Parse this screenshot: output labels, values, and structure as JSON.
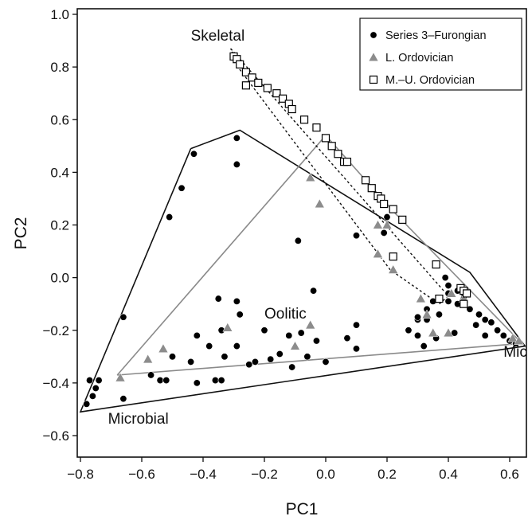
{
  "chart_data": {
    "type": "scatter",
    "xlabel": "PC1",
    "ylabel": "PC2",
    "xlim": [
      -0.8,
      0.65
    ],
    "ylim": [
      -0.6,
      1.0
    ],
    "xticks": [
      -0.8,
      -0.6,
      -0.4,
      -0.2,
      0.0,
      0.2,
      0.4,
      0.6
    ],
    "yticks": [
      -0.6,
      -0.4,
      -0.2,
      0.0,
      0.2,
      0.4,
      0.6,
      0.8,
      1.0
    ],
    "xtick_labels": [
      "−0.8",
      "−0.6",
      "−0.4",
      "−0.2",
      "0.0",
      "0.2",
      "0.4",
      "0.6"
    ],
    "ytick_labels": [
      "−0.6",
      "−0.4",
      "−0.2",
      "0.0",
      "0.2",
      "0.4",
      "0.6",
      "0.8",
      "1.0"
    ],
    "grid": false,
    "legend_position": "top-right",
    "annotations": [
      {
        "text": "Skeletal",
        "x": -0.44,
        "y": 0.9
      },
      {
        "text": "Oolitic",
        "x": -0.2,
        "y": -0.155
      },
      {
        "text": "Micritic",
        "x": 0.58,
        "y": -0.3
      },
      {
        "text": "Microbial",
        "x": -0.71,
        "y": -0.555
      }
    ],
    "series": [
      {
        "name": "Series 3–Furongian",
        "marker": "circle",
        "color": "#000000",
        "points": [
          [
            -0.29,
            0.53
          ],
          [
            -0.43,
            0.47
          ],
          [
            -0.29,
            0.43
          ],
          [
            -0.47,
            0.34
          ],
          [
            -0.51,
            0.23
          ],
          [
            -0.66,
            -0.15
          ],
          [
            -0.09,
            0.14
          ],
          [
            0.1,
            0.16
          ],
          [
            -0.35,
            -0.08
          ],
          [
            -0.29,
            -0.09
          ],
          [
            -0.04,
            -0.05
          ],
          [
            -0.28,
            -0.14
          ],
          [
            -0.42,
            -0.22
          ],
          [
            -0.34,
            -0.2
          ],
          [
            -0.2,
            -0.2
          ],
          [
            -0.08,
            -0.21
          ],
          [
            0.1,
            -0.18
          ],
          [
            0.07,
            -0.23
          ],
          [
            -0.12,
            -0.22
          ],
          [
            -0.03,
            -0.24
          ],
          [
            -0.29,
            -0.26
          ],
          [
            -0.38,
            -0.26
          ],
          [
            0.27,
            -0.2
          ],
          [
            0.3,
            -0.22
          ],
          [
            -0.5,
            -0.3
          ],
          [
            -0.44,
            -0.32
          ],
          [
            -0.33,
            -0.3
          ],
          [
            -0.25,
            -0.33
          ],
          [
            -0.18,
            -0.31
          ],
          [
            -0.15,
            -0.29
          ],
          [
            -0.06,
            -0.3
          ],
          [
            0.1,
            -0.27
          ],
          [
            -0.23,
            -0.32
          ],
          [
            -0.11,
            -0.34
          ],
          [
            0.0,
            -0.32
          ],
          [
            0.32,
            -0.26
          ],
          [
            -0.54,
            -0.39
          ],
          [
            -0.52,
            -0.39
          ],
          [
            -0.42,
            -0.4
          ],
          [
            -0.36,
            -0.39
          ],
          [
            -0.34,
            -0.39
          ],
          [
            -0.57,
            -0.37
          ],
          [
            -0.74,
            -0.39
          ],
          [
            -0.77,
            -0.39
          ],
          [
            -0.75,
            -0.42
          ],
          [
            -0.76,
            -0.45
          ],
          [
            -0.78,
            -0.48
          ],
          [
            -0.66,
            -0.46
          ],
          [
            0.33,
            -0.12
          ],
          [
            0.37,
            -0.14
          ],
          [
            0.4,
            -0.09
          ],
          [
            0.43,
            -0.1
          ],
          [
            0.45,
            -0.08
          ],
          [
            0.47,
            -0.12
          ],
          [
            0.5,
            -0.14
          ],
          [
            0.49,
            -0.18
          ],
          [
            0.52,
            -0.16
          ],
          [
            0.54,
            -0.17
          ],
          [
            0.56,
            -0.2
          ],
          [
            0.58,
            -0.22
          ],
          [
            0.6,
            -0.24
          ],
          [
            0.62,
            -0.25
          ],
          [
            0.52,
            -0.22
          ],
          [
            0.42,
            -0.21
          ],
          [
            0.36,
            -0.23
          ],
          [
            0.33,
            -0.16
          ],
          [
            0.39,
            0.0
          ],
          [
            0.4,
            -0.03
          ],
          [
            0.4,
            -0.06
          ],
          [
            0.43,
            -0.05
          ],
          [
            0.45,
            -0.06
          ],
          [
            0.3,
            -0.16
          ],
          [
            0.2,
            0.23
          ],
          [
            0.19,
            0.28
          ],
          [
            0.19,
            0.17
          ],
          [
            0.3,
            -0.15
          ],
          [
            0.35,
            -0.09
          ]
        ]
      },
      {
        "name": "L. Ordovician",
        "marker": "triangle",
        "color": "#8c8c8c",
        "points": [
          [
            -0.05,
            0.38
          ],
          [
            -0.02,
            0.28
          ],
          [
            0.17,
            0.2
          ],
          [
            0.2,
            0.2
          ],
          [
            0.17,
            0.09
          ],
          [
            0.22,
            0.03
          ],
          [
            0.31,
            -0.08
          ],
          [
            0.33,
            -0.14
          ],
          [
            0.41,
            -0.06
          ],
          [
            0.45,
            -0.08
          ],
          [
            0.35,
            -0.21
          ],
          [
            0.4,
            -0.21
          ],
          [
            0.61,
            -0.23
          ],
          [
            0.63,
            -0.24
          ],
          [
            -0.32,
            -0.19
          ],
          [
            -0.05,
            -0.18
          ],
          [
            -0.1,
            -0.26
          ],
          [
            -0.58,
            -0.31
          ],
          [
            -0.53,
            -0.27
          ],
          [
            -0.67,
            -0.38
          ]
        ]
      },
      {
        "name": "M.–U. Ordovician",
        "marker": "square",
        "color": "#000000",
        "points": [
          [
            -0.3,
            0.84
          ],
          [
            -0.29,
            0.83
          ],
          [
            -0.28,
            0.81
          ],
          [
            -0.26,
            0.78
          ],
          [
            -0.24,
            0.76
          ],
          [
            -0.22,
            0.74
          ],
          [
            -0.19,
            0.72
          ],
          [
            -0.16,
            0.7
          ],
          [
            -0.14,
            0.68
          ],
          [
            -0.12,
            0.66
          ],
          [
            -0.11,
            0.64
          ],
          [
            -0.07,
            0.6
          ],
          [
            -0.03,
            0.57
          ],
          [
            0.0,
            0.53
          ],
          [
            0.02,
            0.5
          ],
          [
            0.04,
            0.47
          ],
          [
            0.06,
            0.44
          ],
          [
            0.07,
            0.44
          ],
          [
            0.13,
            0.37
          ],
          [
            0.15,
            0.34
          ],
          [
            0.17,
            0.31
          ],
          [
            0.18,
            0.3
          ],
          [
            0.19,
            0.28
          ],
          [
            0.22,
            0.26
          ],
          [
            0.25,
            0.22
          ],
          [
            -0.26,
            0.73
          ],
          [
            0.22,
            0.08
          ],
          [
            0.36,
            0.05
          ],
          [
            0.37,
            -0.08
          ],
          [
            0.44,
            -0.04
          ],
          [
            0.45,
            -0.05
          ],
          [
            0.46,
            -0.06
          ],
          [
            0.45,
            -0.1
          ]
        ]
      }
    ],
    "hulls": [
      {
        "style": "solid-black",
        "points": [
          [
            -0.44,
            0.49
          ],
          [
            -0.28,
            0.56
          ],
          [
            0.47,
            0.02
          ],
          [
            0.65,
            -0.26
          ],
          [
            -0.8,
            -0.51
          ],
          [
            -0.44,
            0.49
          ]
        ]
      },
      {
        "style": "solid-gray",
        "points": [
          [
            -0.68,
            -0.37
          ],
          [
            0.0,
            0.54
          ],
          [
            0.23,
            0.24
          ],
          [
            0.64,
            -0.25
          ],
          [
            -0.68,
            -0.37
          ]
        ]
      },
      {
        "style": "dotted-black",
        "points": [
          [
            -0.31,
            0.87
          ],
          [
            0.4,
            -0.07
          ],
          [
            0.37,
            -0.1
          ],
          [
            0.21,
            0.03
          ],
          [
            -0.28,
            0.79
          ],
          [
            -0.31,
            0.87
          ]
        ]
      }
    ]
  }
}
